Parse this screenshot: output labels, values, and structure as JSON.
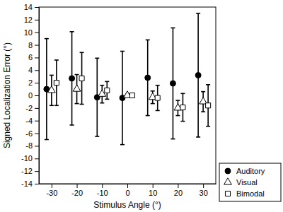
{
  "chart_data": {
    "type": "errorbar",
    "x_label": "Stimulus Angle (°)",
    "y_label": "Signed Localization Error (°)",
    "x": [
      -30,
      -20,
      -10,
      0,
      10,
      20,
      30
    ],
    "xlim": [
      -35,
      35
    ],
    "xticks": [
      -30,
      -20,
      -10,
      0,
      10,
      20,
      30
    ],
    "ylim": [
      -14,
      14
    ],
    "yticks": [
      -14,
      -12,
      -10,
      -8,
      -6,
      -4,
      -2,
      0,
      2,
      4,
      6,
      8,
      10,
      12,
      14
    ],
    "grid": false,
    "legend": "lower right",
    "series": [
      {
        "name": "Auditory",
        "color": "#000000",
        "marker": "circle",
        "values": [
          1.0,
          2.7,
          -0.3,
          -0.4,
          2.8,
          1.9,
          3.2
        ],
        "errors": [
          8.0,
          7.4,
          6.2,
          7.4,
          6.0,
          8.8,
          9.8
        ]
      },
      {
        "name": "Visual",
        "color": "#000000",
        "marker": "triangle-open",
        "values": [
          0.8,
          1.0,
          0.2,
          0.0,
          -0.3,
          -2.0,
          -1.0
        ],
        "errors": [
          2.4,
          2.3,
          1.4,
          0.2,
          1.0,
          1.2,
          1.6
        ]
      },
      {
        "name": "Bimodal",
        "color": "#000000",
        "marker": "square-open",
        "values": [
          2.0,
          2.7,
          0.8,
          0.0,
          -0.4,
          -1.9,
          -1.6
        ],
        "errors": [
          3.6,
          4.1,
          1.4,
          0.3,
          2.0,
          2.2,
          3.3
        ]
      }
    ]
  }
}
